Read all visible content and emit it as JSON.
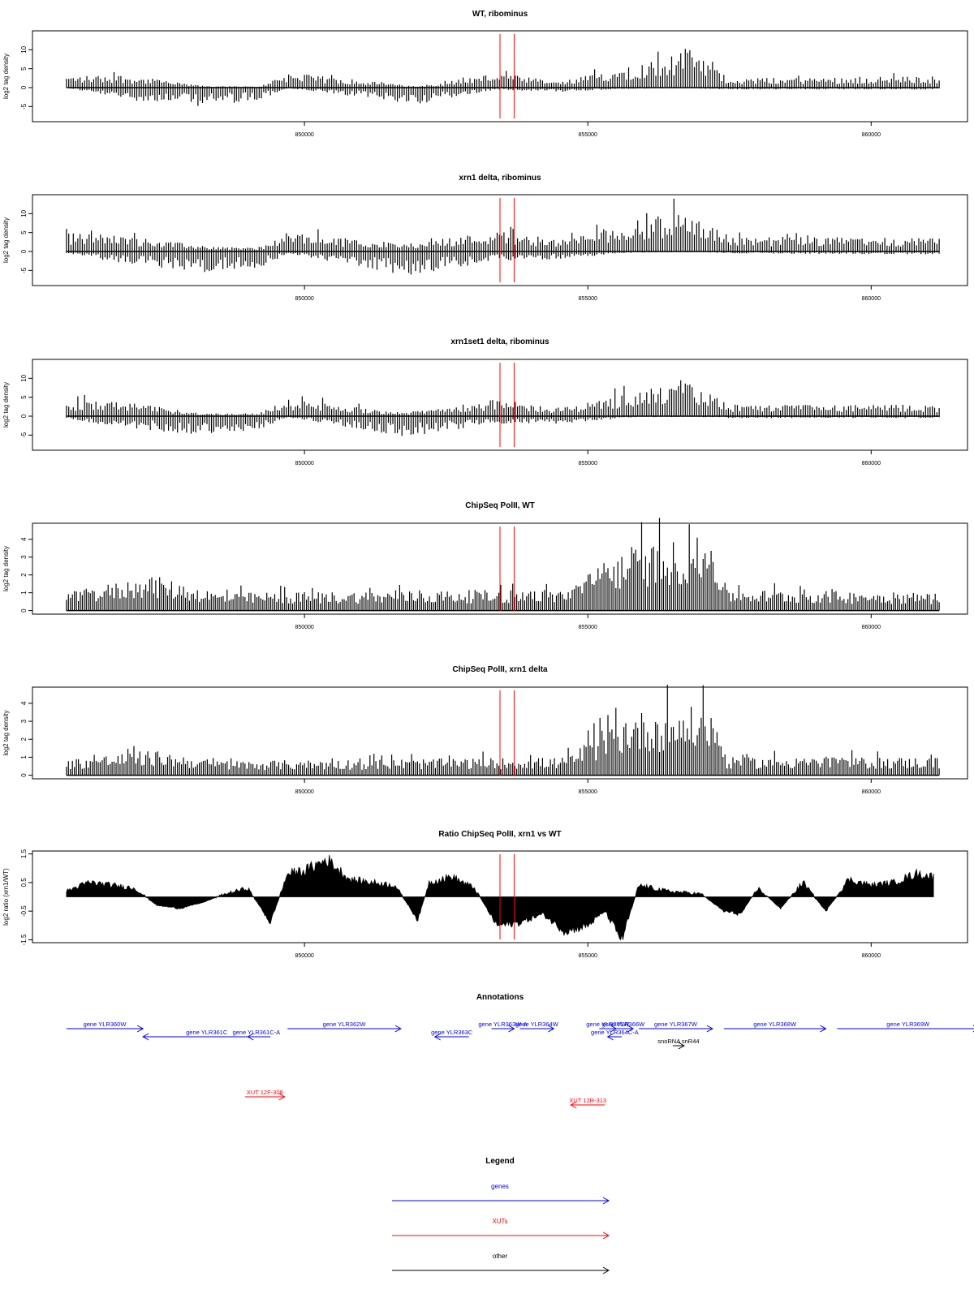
{
  "chart_data": [
    {
      "type": "bar",
      "title": "WT, ribominus",
      "ylabel": "log2 tag density",
      "xlim": [
        845200,
        861700
      ],
      "ylim": [
        -9,
        15
      ],
      "yticks": [
        "-5",
        "0",
        "5",
        "10"
      ],
      "xticks": [
        "850000",
        "855000",
        "860000"
      ],
      "x_tick_values": [
        850000,
        855000,
        860000
      ],
      "y_tick_values": [
        -5,
        0,
        5,
        10
      ],
      "red_lines": [
        853450,
        853700
      ],
      "profile": {
        "start": 845800,
        "step": 40,
        "envelope": [
          {
            "x": 845800,
            "pos": 3.0,
            "neg": 0
          },
          {
            "x": 846700,
            "pos": 3.5,
            "neg": -3
          },
          {
            "x": 848200,
            "pos": 0.5,
            "neg": -5
          },
          {
            "x": 849200,
            "pos": 0.3,
            "neg": -3.5
          },
          {
            "x": 849700,
            "pos": 4.0,
            "neg": -0.2
          },
          {
            "x": 852000,
            "pos": 0.3,
            "neg": -4.5
          },
          {
            "x": 853400,
            "pos": 4.0,
            "neg": -0.5
          },
          {
            "x": 854500,
            "pos": 1.5,
            "neg": -1.2
          },
          {
            "x": 855800,
            "pos": 6.0,
            "neg": -0.3
          },
          {
            "x": 856800,
            "pos": 10.0,
            "neg": -0.2
          },
          {
            "x": 857500,
            "pos": 2.5,
            "neg": -0.5
          },
          {
            "x": 861200,
            "pos": 3.0,
            "neg": -0.5
          }
        ]
      },
      "render": "bars"
    },
    {
      "type": "bar",
      "title": "xrn1 delta, ribominus",
      "ylabel": "log2 tag density",
      "xlim": [
        845200,
        861700
      ],
      "ylim": [
        -9,
        15
      ],
      "yticks": [
        "-5",
        "0",
        "5",
        "10"
      ],
      "xticks": [
        "850000",
        "855000",
        "860000"
      ],
      "x_tick_values": [
        850000,
        855000,
        860000
      ],
      "y_tick_values": [
        -5,
        0,
        5,
        10
      ],
      "red_lines": [
        853450,
        853700
      ],
      "profile": {
        "start": 845800,
        "step": 40,
        "envelope": [
          {
            "x": 845800,
            "pos": 5.0,
            "neg": -0.5
          },
          {
            "x": 846700,
            "pos": 4.5,
            "neg": -3
          },
          {
            "x": 848200,
            "pos": 1.5,
            "neg": -5.5
          },
          {
            "x": 849200,
            "pos": 1.0,
            "neg": -4.5
          },
          {
            "x": 849700,
            "pos": 5.0,
            "neg": -0.5
          },
          {
            "x": 851800,
            "pos": 2.0,
            "neg": -6.5
          },
          {
            "x": 853400,
            "pos": 5.5,
            "neg": -2.5
          },
          {
            "x": 854500,
            "pos": 3.0,
            "neg": -2.0
          },
          {
            "x": 855800,
            "pos": 8.0,
            "neg": -0.3
          },
          {
            "x": 856800,
            "pos": 11.0,
            "neg": -0.2
          },
          {
            "x": 857500,
            "pos": 4.0,
            "neg": -0.5
          },
          {
            "x": 861200,
            "pos": 3.5,
            "neg": -0.8
          }
        ]
      },
      "render": "bars"
    },
    {
      "type": "bar",
      "title": "xrn1set1 delta, ribominus",
      "ylabel": "log2 tag density",
      "xlim": [
        845200,
        861700
      ],
      "ylim": [
        -9,
        15
      ],
      "yticks": [
        "-5",
        "0",
        "5",
        "10"
      ],
      "xticks": [
        "850000",
        "855000",
        "860000"
      ],
      "x_tick_values": [
        850000,
        855000,
        860000
      ],
      "y_tick_values": [
        -5,
        0,
        5,
        10
      ],
      "red_lines": [
        853450,
        853700
      ],
      "profile": {
        "start": 845800,
        "step": 40,
        "envelope": [
          {
            "x": 845800,
            "pos": 4.0,
            "neg": -0.5
          },
          {
            "x": 846700,
            "pos": 4.0,
            "neg": -3
          },
          {
            "x": 848200,
            "pos": 0.8,
            "neg": -5
          },
          {
            "x": 849200,
            "pos": 0.8,
            "neg": -3.5
          },
          {
            "x": 849700,
            "pos": 4.5,
            "neg": -0.3
          },
          {
            "x": 851800,
            "pos": 1.0,
            "neg": -5.5
          },
          {
            "x": 853400,
            "pos": 4.5,
            "neg": -2.0
          },
          {
            "x": 854500,
            "pos": 2.0,
            "neg": -2.0
          },
          {
            "x": 855800,
            "pos": 6.5,
            "neg": -0.3
          },
          {
            "x": 856800,
            "pos": 9.0,
            "neg": -0.2
          },
          {
            "x": 857500,
            "pos": 3.0,
            "neg": -0.5
          },
          {
            "x": 861200,
            "pos": 3.0,
            "neg": -0.5
          }
        ]
      },
      "render": "bars"
    },
    {
      "type": "bar",
      "title": "ChipSeq PolII, WT",
      "ylabel": "log2 tag density",
      "xlim": [
        845200,
        861700
      ],
      "ylim": [
        -0.2,
        4.9
      ],
      "yticks": [
        "0",
        "1",
        "2",
        "3",
        "4"
      ],
      "xticks": [
        "850000",
        "855000",
        "860000"
      ],
      "x_tick_values": [
        850000,
        855000,
        860000
      ],
      "y_tick_values": [
        0,
        1,
        2,
        3,
        4
      ],
      "red_lines": [
        853450,
        853700
      ],
      "profile": {
        "start": 845800,
        "step": 35,
        "envelope": [
          {
            "x": 845800,
            "pos": 1.0,
            "neg": 0
          },
          {
            "x": 847300,
            "pos": 2.0,
            "neg": 0
          },
          {
            "x": 848500,
            "pos": 1.0,
            "neg": 0
          },
          {
            "x": 854600,
            "pos": 1.2,
            "neg": 0
          },
          {
            "x": 855700,
            "pos": 3.6,
            "neg": 0
          },
          {
            "x": 857200,
            "pos": 4.2,
            "neg": 0
          },
          {
            "x": 857450,
            "pos": 1.2,
            "neg": 0
          },
          {
            "x": 861200,
            "pos": 1.0,
            "neg": 0
          }
        ]
      },
      "render": "bars"
    },
    {
      "type": "bar",
      "title": "ChipSeq PolII, xrn1 delta",
      "ylabel": "log2 tag density",
      "xlim": [
        845200,
        861700
      ],
      "ylim": [
        -0.2,
        4.9
      ],
      "yticks": [
        "0",
        "1",
        "2",
        "3",
        "4"
      ],
      "xticks": [
        "850000",
        "855000",
        "860000"
      ],
      "x_tick_values": [
        850000,
        855000,
        860000
      ],
      "y_tick_values": [
        0,
        1,
        2,
        3,
        4
      ],
      "red_lines": [
        853450,
        853700
      ],
      "profile": {
        "start": 845800,
        "step": 35,
        "envelope": [
          {
            "x": 845800,
            "pos": 0.9,
            "neg": 0
          },
          {
            "x": 847300,
            "pos": 1.4,
            "neg": 0
          },
          {
            "x": 848500,
            "pos": 0.8,
            "neg": 0
          },
          {
            "x": 854600,
            "pos": 1.0,
            "neg": 0
          },
          {
            "x": 855700,
            "pos": 3.5,
            "neg": 0
          },
          {
            "x": 857200,
            "pos": 3.9,
            "neg": 0
          },
          {
            "x": 857450,
            "pos": 1.0,
            "neg": 0
          },
          {
            "x": 861200,
            "pos": 1.0,
            "neg": 0
          }
        ]
      },
      "render": "bars"
    },
    {
      "type": "area",
      "title": "Ratio ChipSeq PolII, xrn1 vs WT",
      "ylabel": "log2 ratio (xrn1/WT)",
      "xlim": [
        845200,
        861700
      ],
      "ylim": [
        -1.6,
        1.6
      ],
      "yticks": [
        "-1.5",
        "-0.5",
        "0.5",
        "1.5"
      ],
      "xticks": [
        "850000",
        "855000",
        "860000"
      ],
      "x_tick_values": [
        850000,
        855000,
        860000
      ],
      "y_tick_values": [
        -1.5,
        -0.5,
        0.5,
        1.5
      ],
      "red_lines": [
        853450,
        853700
      ],
      "x": [
        845800,
        846200,
        846600,
        847000,
        847400,
        847800,
        848200,
        848600,
        849000,
        849400,
        849700,
        850000,
        850400,
        850800,
        851200,
        851600,
        852000,
        852200,
        852600,
        853000,
        853400,
        853800,
        854200,
        854600,
        855000,
        855300,
        855600,
        855900,
        856400,
        857000,
        857400,
        857700,
        858000,
        858400,
        858800,
        859200,
        859600,
        860000,
        860400,
        860800,
        861100
      ],
      "y": [
        0.2,
        0.5,
        0.4,
        0.3,
        -0.3,
        -0.4,
        -0.2,
        0.1,
        0.3,
        -0.9,
        0.8,
        0.9,
        1.3,
        0.6,
        0.5,
        0.4,
        -0.8,
        0.5,
        0.7,
        0.3,
        -1.0,
        -0.9,
        -0.6,
        -1.2,
        -1.0,
        -0.5,
        -1.5,
        0.4,
        0.2,
        0.1,
        -0.5,
        -0.6,
        0.3,
        -0.4,
        0.5,
        -0.5,
        0.6,
        0.4,
        0.5,
        0.8,
        0.7
      ]
    }
  ],
  "annotations": {
    "title": "Annotations",
    "genes": [
      {
        "label": "gene YLR360W",
        "x1": 845800,
        "x2": 847150,
        "dir": "right",
        "row": 0
      },
      {
        "label": "gene YLR361C",
        "x1": 847150,
        "x2": 849400,
        "dir": "left",
        "row": 1
      },
      {
        "label": "gene YLR361C-A",
        "x1": 849000,
        "x2": 849300,
        "dir": "left",
        "row": 1
      },
      {
        "label": "gene YLR362W",
        "x1": 849700,
        "x2": 851700,
        "dir": "right",
        "row": 0
      },
      {
        "label": "gene YLR363C",
        "x1": 852300,
        "x2": 852900,
        "dir": "left",
        "row": 1
      },
      {
        "label": "gene YLR363W-A",
        "x1": 853300,
        "x2": 853700,
        "dir": "right",
        "row": 0
      },
      {
        "label": "gene YLR364W",
        "x1": 853800,
        "x2": 854400,
        "dir": "right",
        "row": 0
      },
      {
        "label": "gene YLR364C-A",
        "x1": 855350,
        "x2": 855600,
        "dir": "left",
        "row": 1
      },
      {
        "label": "gene YLR365W",
        "x1": 855200,
        "x2": 855500,
        "dir": "right",
        "row": 0
      },
      {
        "label": "gene YLR366W",
        "x1": 855450,
        "x2": 855800,
        "dir": "right",
        "row": 0
      },
      {
        "label": "gene YLR367W",
        "x1": 855900,
        "x2": 857200,
        "dir": "right",
        "row": 0
      },
      {
        "label": "gene YLR368W",
        "x1": 857400,
        "x2": 859200,
        "dir": "right",
        "row": 0
      },
      {
        "label": "gene YLR369W",
        "x1": 859400,
        "x2": 861900,
        "dir": "right",
        "row": 0
      }
    ],
    "other": [
      {
        "label": "snoRNA snR44",
        "x1": 856500,
        "x2": 856700,
        "dir": "right"
      }
    ],
    "xuts": [
      {
        "label": "XUT 12F-308",
        "x1": 848950,
        "x2": 849650,
        "dir": "right"
      },
      {
        "label": "XUT 12R-313",
        "x1": 854700,
        "x2": 855300,
        "dir": "left"
      }
    ]
  },
  "legend": {
    "title": "Legend",
    "items": [
      {
        "label": "genes",
        "color": "#0000ff"
      },
      {
        "label": "XUTs",
        "color": "#ff0000"
      },
      {
        "label": "other",
        "color": "#000000"
      }
    ]
  },
  "colors": {
    "bars": "#000000",
    "marker_lines": "#ff0000",
    "genes": "#0000ff",
    "xuts": "#ff0000",
    "other": "#000000"
  }
}
